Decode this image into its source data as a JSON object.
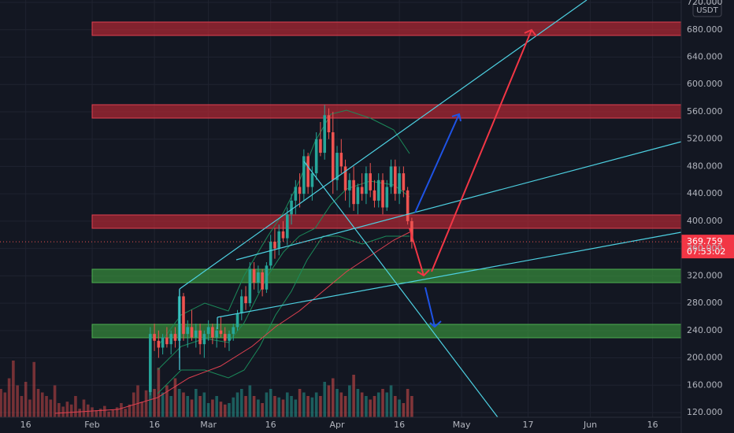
{
  "chart_data": {
    "type": "candlestick",
    "x": [
      46,
      47,
      48,
      49,
      50,
      51,
      52,
      53,
      54,
      55,
      56,
      57,
      58,
      59,
      60,
      61,
      62,
      63,
      64,
      65,
      66,
      67,
      68,
      69,
      70,
      71,
      72,
      73,
      74,
      75,
      76,
      77,
      78,
      79,
      80,
      81,
      82,
      83,
      84,
      85,
      86,
      87,
      88,
      89,
      90,
      91,
      92,
      93,
      94,
      95,
      96,
      97,
      98,
      99,
      100,
      101,
      102,
      103,
      104,
      105,
      106,
      107,
      108,
      109
    ],
    "open": [
      150,
      235,
      225,
      215,
      230,
      220,
      235,
      225,
      290,
      235,
      245,
      230,
      240,
      220,
      235,
      245,
      230,
      240,
      235,
      225,
      235,
      245,
      265,
      290,
      280,
      330,
      310,
      325,
      300,
      335,
      370,
      360,
      385,
      375,
      410,
      430,
      450,
      440,
      495,
      450,
      470,
      520,
      500,
      555,
      530,
      460,
      500,
      480,
      445,
      460,
      425,
      450,
      440,
      470,
      445,
      430,
      460,
      420,
      450,
      480,
      440,
      470,
      445,
      400
    ],
    "high": [
      245,
      250,
      240,
      235,
      245,
      240,
      245,
      300,
      295,
      255,
      270,
      250,
      250,
      240,
      255,
      250,
      245,
      260,
      245,
      240,
      250,
      270,
      300,
      305,
      340,
      340,
      335,
      330,
      340,
      380,
      390,
      395,
      400,
      420,
      440,
      460,
      470,
      505,
      500,
      480,
      530,
      545,
      570,
      565,
      560,
      510,
      520,
      490,
      470,
      480,
      455,
      470,
      480,
      485,
      460,
      470,
      470,
      460,
      490,
      490,
      480,
      480,
      450,
      405
    ],
    "low": [
      145,
      210,
      200,
      205,
      215,
      205,
      215,
      200,
      225,
      215,
      225,
      215,
      205,
      200,
      225,
      220,
      215,
      230,
      215,
      210,
      225,
      240,
      255,
      270,
      275,
      300,
      295,
      290,
      295,
      330,
      345,
      350,
      370,
      365,
      395,
      410,
      420,
      430,
      440,
      430,
      460,
      495,
      490,
      520,
      440,
      445,
      470,
      430,
      420,
      415,
      410,
      430,
      425,
      435,
      420,
      420,
      410,
      415,
      440,
      430,
      425,
      435,
      395,
      360
    ],
    "close": [
      235,
      225,
      215,
      230,
      220,
      235,
      225,
      290,
      235,
      245,
      230,
      240,
      220,
      235,
      245,
      230,
      240,
      235,
      225,
      235,
      245,
      265,
      290,
      280,
      330,
      310,
      325,
      300,
      335,
      370,
      360,
      385,
      375,
      410,
      430,
      450,
      440,
      495,
      450,
      470,
      520,
      500,
      555,
      530,
      460,
      500,
      480,
      445,
      460,
      425,
      450,
      440,
      470,
      445,
      430,
      460,
      420,
      450,
      480,
      440,
      470,
      445,
      400,
      370
    ],
    "up_color": "#26a69a",
    "down_color": "#ef5350",
    "volume": {
      "x": [
        10,
        11,
        12,
        13,
        14,
        15,
        16,
        17,
        18,
        19,
        20,
        21,
        22,
        23,
        24,
        25,
        26,
        27,
        28,
        29,
        30,
        31,
        32,
        33,
        34,
        35,
        36,
        37,
        38,
        39,
        40,
        41,
        42,
        43,
        44,
        45,
        46,
        47,
        48,
        49,
        50,
        51,
        52,
        53,
        54,
        55,
        56,
        57,
        58,
        59,
        60,
        61,
        62,
        63,
        64,
        65,
        66,
        67,
        68,
        69,
        70,
        71,
        72,
        73,
        74,
        75,
        76,
        77,
        78,
        79,
        80,
        81,
        82,
        83,
        84,
        85,
        86,
        87,
        88,
        89,
        90,
        91,
        92,
        93,
        94,
        95,
        96,
        97,
        98,
        99,
        100,
        101,
        102,
        103,
        104,
        105,
        106,
        107,
        108,
        109
      ],
      "values": [
        40,
        35,
        55,
        80,
        45,
        30,
        50,
        25,
        78,
        40,
        35,
        30,
        25,
        45,
        20,
        15,
        22,
        18,
        30,
        12,
        25,
        18,
        14,
        10,
        12,
        16,
        8,
        10,
        14,
        20,
        12,
        18,
        35,
        45,
        22,
        38,
        60,
        40,
        70,
        35,
        45,
        30,
        55,
        40,
        35,
        30,
        25,
        40,
        30,
        35,
        20,
        25,
        30,
        22,
        18,
        20,
        28,
        35,
        40,
        30,
        45,
        30,
        25,
        20,
        35,
        40,
        30,
        28,
        25,
        35,
        30,
        25,
        40,
        35,
        30,
        28,
        35,
        30,
        50,
        45,
        55,
        40,
        35,
        30,
        45,
        60,
        40,
        35,
        30,
        25,
        30,
        35,
        40,
        35,
        45,
        30,
        25,
        20,
        40,
        30
      ],
      "ylim": [
        0,
        100
      ]
    },
    "xlim": [
      9.8,
      173.9
    ],
    "xticks": [
      16,
      {
        "value": 32,
        "label": "Feb"
      },
      {
        "value": 47,
        "label": "16"
      },
      {
        "value": 60,
        "label": "Mar"
      },
      {
        "value": 75,
        "label": "16"
      },
      {
        "value": 91,
        "label": "Apr"
      },
      {
        "value": 106,
        "label": "16"
      },
      {
        "value": 121,
        "label": "May"
      },
      {
        "value": 137,
        "label": "17"
      },
      {
        "value": 152,
        "label": "Jun"
      },
      {
        "value": 167,
        "label": "16"
      }
    ],
    "ylim": [
      113.1,
      723.5
    ],
    "yticks": [
      {
        "value": 120,
        "label": "120.000"
      },
      {
        "value": 160,
        "label": "160.000"
      },
      {
        "value": 200,
        "label": "200.000"
      },
      {
        "value": 240,
        "label": "240.000"
      },
      {
        "value": 280,
        "label": "280.000"
      },
      {
        "value": 320,
        "label": "320.000"
      },
      {
        "value": 360,
        "label": "360.000"
      },
      {
        "value": 400,
        "label": "400.000"
      },
      {
        "value": 440,
        "label": "440.000"
      },
      {
        "value": 480,
        "label": "480.000"
      },
      {
        "value": 520,
        "label": "520.000"
      },
      {
        "value": 560,
        "label": "560.000"
      },
      {
        "value": 600,
        "label": "600.000"
      },
      {
        "value": 640,
        "label": "640.000"
      },
      {
        "value": 680,
        "label": "680.000"
      },
      {
        "value": 720,
        "label": "720.000"
      }
    ],
    "grid": true,
    "currency": "USDT",
    "last_price": {
      "value": 369.759,
      "label": "369.759"
    },
    "countdown": "07:53:02"
  }
}
